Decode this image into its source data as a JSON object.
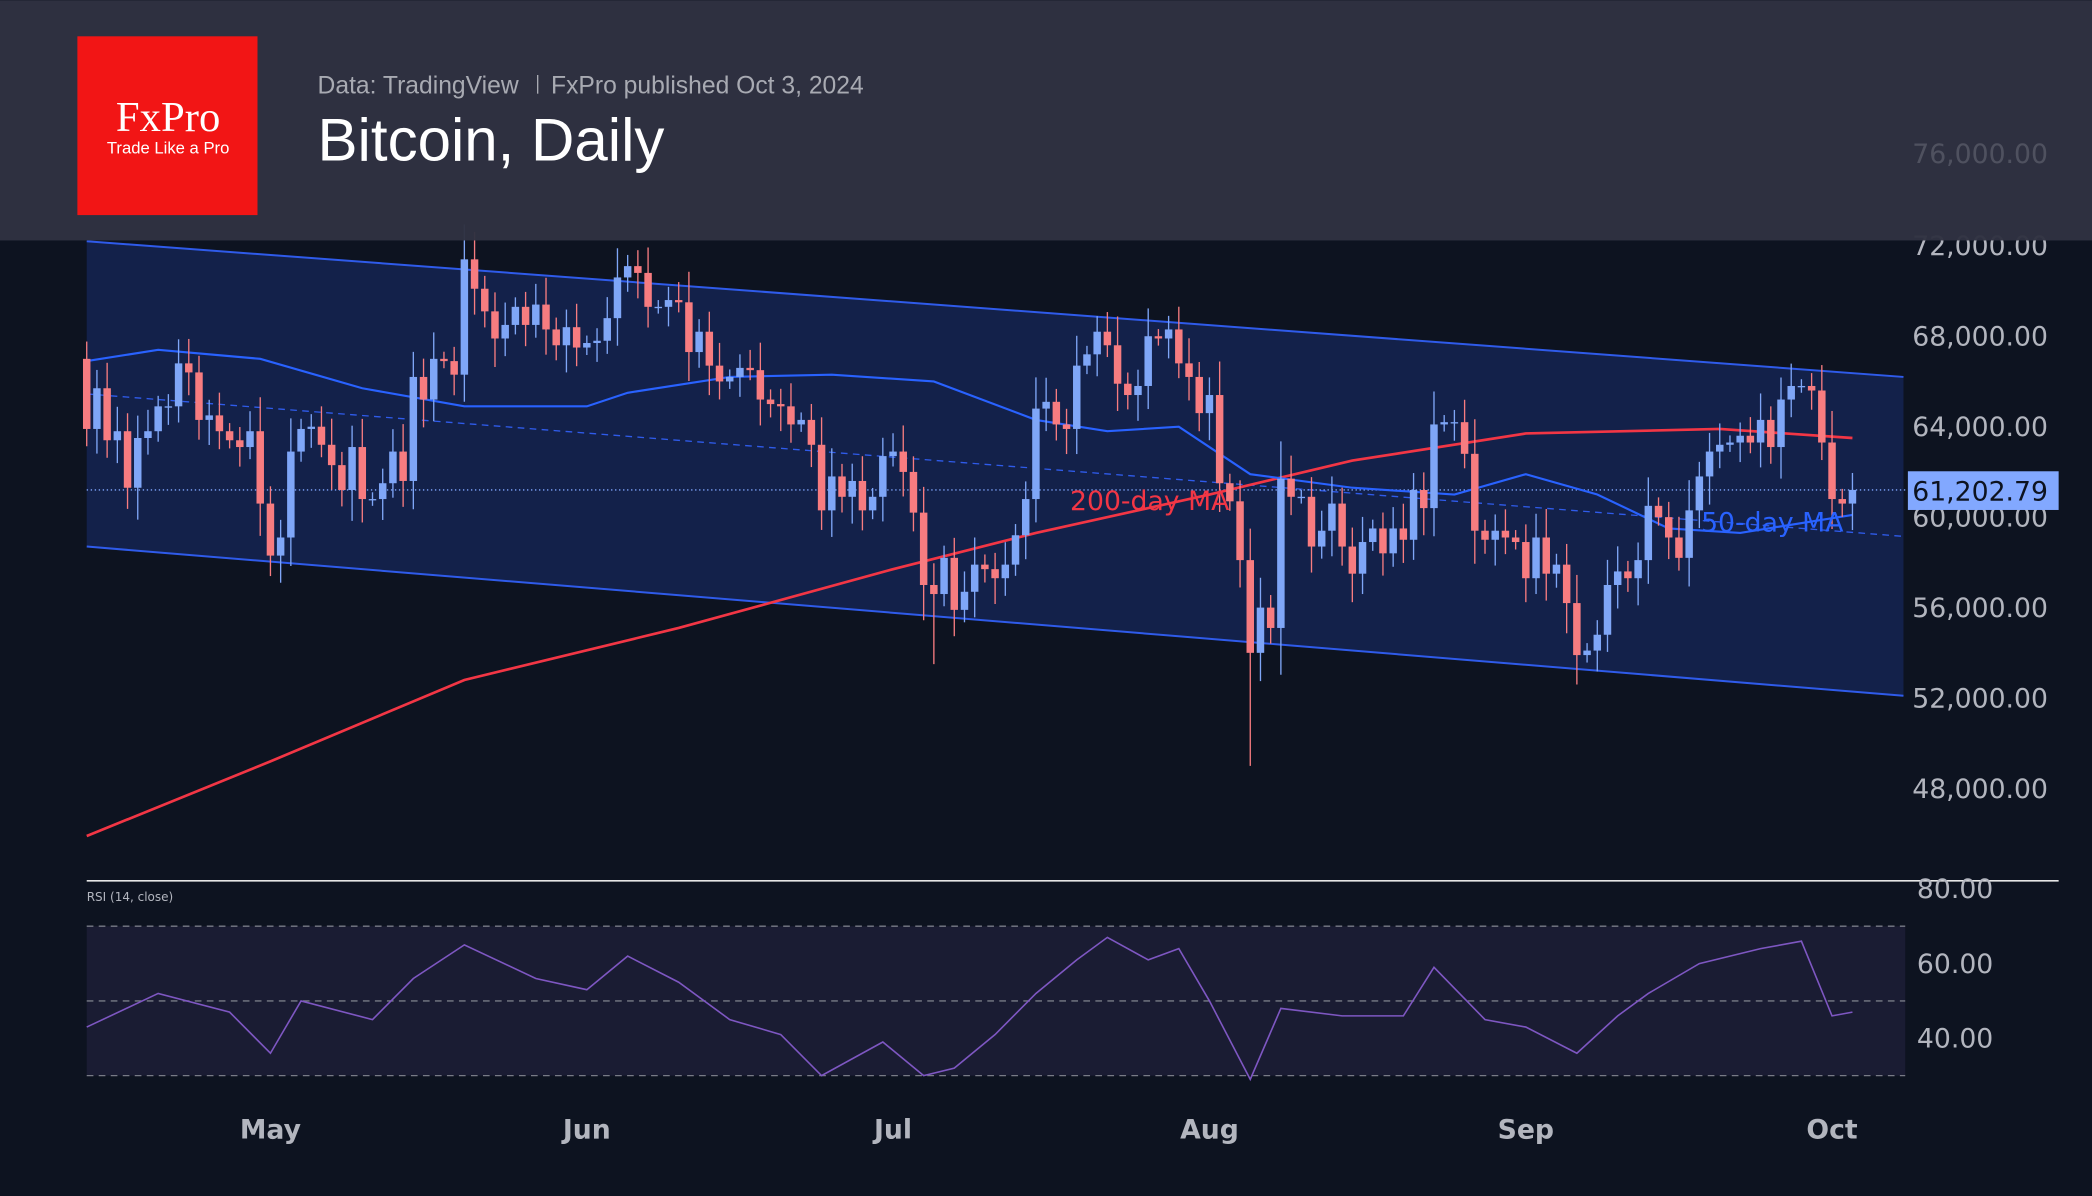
{
  "header": {
    "logo_text": "FxPro",
    "logo_tagline": "Trade Like a Pro",
    "source": "Data: TradingView",
    "publisher": "FxPro published Oct 3, 2024",
    "title": "Bitcoin, Daily"
  },
  "colors": {
    "up": "#7fa6f7",
    "down": "#f77c80",
    "ma200": "#f23645",
    "ma50": "#2962ff",
    "channel": "#2f5bea",
    "channel_fill": "#13214a",
    "rsi": "#7e57c2",
    "logo": "#f21515",
    "price_label": "#82a8ff"
  },
  "chart_data": {
    "type": "candlestick",
    "title": "Bitcoin, Daily",
    "y_ticks": [
      "76,000.00",
      "72,000.00",
      "68,000.00",
      "64,000.00",
      "60,000.00",
      "56,000.00",
      "52,000.00",
      "48,000.00"
    ],
    "y_tick_values": [
      76000,
      72000,
      68000,
      64000,
      60000,
      56000,
      52000,
      48000
    ],
    "x_ticks": [
      {
        "label": "May",
        "date": "2024-05-01"
      },
      {
        "label": "Jun",
        "date": "2024-06-01"
      },
      {
        "label": "Jul",
        "date": "2024-07-01"
      },
      {
        "label": "Aug",
        "date": "2024-08-01"
      },
      {
        "label": "Sep",
        "date": "2024-09-01"
      },
      {
        "label": "Oct",
        "date": "2024-10-01"
      }
    ],
    "last_price": "61,202.79",
    "first_date": "2024-04-13",
    "first_open": 67000,
    "close": [
      63900,
      65700,
      63400,
      63800,
      61300,
      63500,
      63800,
      64900,
      64900,
      66800,
      66400,
      64300,
      64500,
      63800,
      63400,
      63100,
      63800,
      60600,
      58300,
      59100,
      62900,
      63900,
      64000,
      63200,
      62300,
      61200,
      63100,
      60800,
      60800,
      61500,
      62900,
      61600,
      66200,
      65200,
      67000,
      66900,
      66300,
      71400,
      70100,
      69100,
      67900,
      68500,
      69300,
      68500,
      69400,
      68300,
      67600,
      68400,
      67500,
      67700,
      67800,
      68800,
      70600,
      71100,
      70800,
      69300,
      69300,
      69600,
      69500,
      67300,
      68200,
      66700,
      66000,
      66200,
      66600,
      66500,
      65200,
      65000,
      64900,
      64100,
      64300,
      63200,
      60300,
      61800,
      60900,
      61600,
      60300,
      60900,
      62700,
      62900,
      62000,
      60200,
      57000,
      56600,
      58200,
      55900,
      56700,
      57900,
      57700,
      57300,
      57900,
      59200,
      60800,
      64800,
      65100,
      64100,
      63900,
      66700,
      67200,
      68200,
      67600,
      65900,
      65400,
      65800,
      68000,
      67900,
      68300,
      66800,
      66200,
      64600,
      65400,
      61500,
      60700,
      58100,
      54000,
      56000,
      55100,
      61700,
      60900,
      60900,
      58700,
      59400,
      60600,
      58700,
      57500,
      58900,
      59500,
      58400,
      59500,
      59000,
      61200,
      60400,
      64100,
      64200,
      64200,
      62800,
      59400,
      59000,
      59400,
      59100,
      58900,
      57300,
      59100,
      57500,
      57900,
      56200,
      53900,
      54100,
      54800,
      57000,
      57600,
      57300,
      58100,
      60500,
      60000,
      59100,
      58200,
      60300,
      61800,
      62900,
      63200,
      63300,
      63600,
      63300,
      64300,
      63100,
      65200,
      65800,
      65800,
      65600,
      63300,
      60800,
      60600,
      61202.79
    ],
    "extreme_lows": [
      {
        "date": "2024-08-05",
        "low": 49000
      },
      {
        "date": "2024-09-06",
        "low": 52600
      },
      {
        "date": "2024-07-05",
        "low": 53500
      }
    ],
    "ma200": {
      "label": "200-day MA",
      "points": [
        [
          "2024-04-13",
          45900
        ],
        [
          "2024-05-01",
          49200
        ],
        [
          "2024-05-20",
          52800
        ],
        [
          "2024-06-10",
          55100
        ],
        [
          "2024-07-01",
          57700
        ],
        [
          "2024-07-15",
          59300
        ],
        [
          "2024-08-01",
          61000
        ],
        [
          "2024-08-15",
          62500
        ],
        [
          "2024-09-01",
          63700
        ],
        [
          "2024-09-20",
          63900
        ],
        [
          "2024-10-03",
          63500
        ]
      ]
    },
    "ma50": {
      "label": "50-day MA",
      "points": [
        [
          "2024-04-13",
          66900
        ],
        [
          "2024-04-20",
          67400
        ],
        [
          "2024-04-30",
          67000
        ],
        [
          "2024-05-10",
          65700
        ],
        [
          "2024-05-20",
          64900
        ],
        [
          "2024-06-01",
          64900
        ],
        [
          "2024-06-05",
          65500
        ],
        [
          "2024-06-15",
          66200
        ],
        [
          "2024-06-25",
          66300
        ],
        [
          "2024-07-05",
          66000
        ],
        [
          "2024-07-15",
          64300
        ],
        [
          "2024-07-22",
          63800
        ],
        [
          "2024-07-29",
          64000
        ],
        [
          "2024-08-05",
          61900
        ],
        [
          "2024-08-15",
          61300
        ],
        [
          "2024-08-25",
          61000
        ],
        [
          "2024-09-01",
          61900
        ],
        [
          "2024-09-08",
          61000
        ],
        [
          "2024-09-15",
          59500
        ],
        [
          "2024-09-22",
          59300
        ],
        [
          "2024-10-03",
          60100
        ]
      ]
    },
    "channel": {
      "upper": [
        [
          "2024-04-13",
          72200
        ],
        [
          "2024-10-08",
          66200
        ]
      ],
      "lower": [
        [
          "2024-04-13",
          58700
        ],
        [
          "2024-10-08",
          52100
        ]
      ]
    },
    "rsi": {
      "label": "RSI (14, close)",
      "y_ticks": [
        "80.00",
        "60.00",
        "40.00"
      ],
      "y_tick_values": [
        80,
        60,
        40
      ],
      "bands": [
        70,
        50,
        30
      ],
      "points": [
        [
          "2024-04-13",
          43
        ],
        [
          "2024-04-20",
          52
        ],
        [
          "2024-04-27",
          47
        ],
        [
          "2024-05-01",
          36
        ],
        [
          "2024-05-04",
          50
        ],
        [
          "2024-05-11",
          45
        ],
        [
          "2024-05-15",
          56
        ],
        [
          "2024-05-20",
          65
        ],
        [
          "2024-05-27",
          56
        ],
        [
          "2024-06-01",
          53
        ],
        [
          "2024-06-05",
          62
        ],
        [
          "2024-06-10",
          55
        ],
        [
          "2024-06-15",
          45
        ],
        [
          "2024-06-20",
          41
        ],
        [
          "2024-06-24",
          30
        ],
        [
          "2024-06-30",
          39
        ],
        [
          "2024-07-04",
          30
        ],
        [
          "2024-07-07",
          32
        ],
        [
          "2024-07-11",
          41
        ],
        [
          "2024-07-15",
          52
        ],
        [
          "2024-07-19",
          61
        ],
        [
          "2024-07-22",
          67
        ],
        [
          "2024-07-26",
          61
        ],
        [
          "2024-07-29",
          64
        ],
        [
          "2024-08-01",
          50
        ],
        [
          "2024-08-05",
          29
        ],
        [
          "2024-08-08",
          48
        ],
        [
          "2024-08-14",
          46
        ],
        [
          "2024-08-20",
          46
        ],
        [
          "2024-08-23",
          59
        ],
        [
          "2024-08-28",
          45
        ],
        [
          "2024-09-01",
          43
        ],
        [
          "2024-09-06",
          36
        ],
        [
          "2024-09-10",
          46
        ],
        [
          "2024-09-13",
          52
        ],
        [
          "2024-09-18",
          60
        ],
        [
          "2024-09-24",
          64
        ],
        [
          "2024-09-28",
          66
        ],
        [
          "2024-10-01",
          46
        ],
        [
          "2024-10-03",
          47
        ]
      ]
    }
  }
}
